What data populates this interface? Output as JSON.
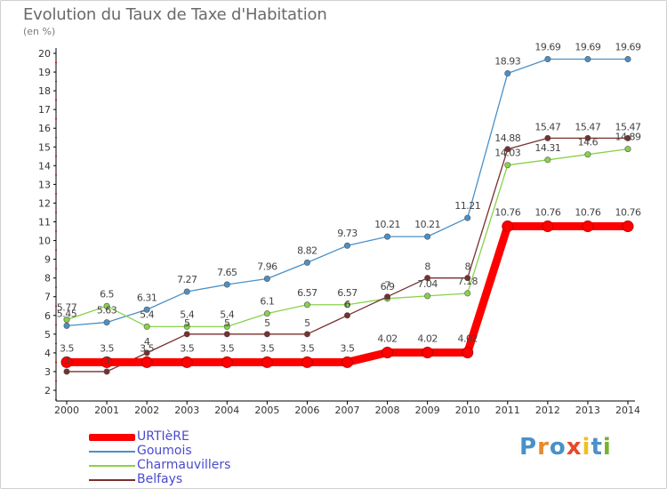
{
  "header": {
    "title": "Evolution du Taux de Taxe d'Habitation",
    "unit": "(en %)"
  },
  "chart_data": {
    "type": "line",
    "title": "Evolution du Taux de Taxe d'Habitation",
    "ylabel": "(en %)",
    "xlabel": "",
    "x": [
      "2000",
      "2001",
      "2002",
      "2003",
      "2004",
      "2005",
      "2006",
      "2007",
      "2008",
      "2009",
      "2010",
      "2011",
      "2012",
      "2013",
      "2014"
    ],
    "ylim": [
      2,
      20
    ],
    "yticks": [
      2,
      3,
      4,
      5,
      6,
      7,
      8,
      9,
      10,
      11,
      12,
      13,
      14,
      15,
      16,
      17,
      18,
      19,
      20
    ],
    "grid": false,
    "legend_position": "bottom-left",
    "series": [
      {
        "name": "URTIèRE",
        "color": "#ff0000",
        "values": [
          3.5,
          3.5,
          3.5,
          3.5,
          3.5,
          3.5,
          3.5,
          3.5,
          4.02,
          4.02,
          4.02,
          10.76,
          10.76,
          10.76,
          10.76
        ],
        "labels": [
          "3.5",
          "3.5",
          "3.5",
          "3.5",
          "3.5",
          "3.5",
          "3.5",
          "3.5",
          "4.02",
          "4.02",
          "4.02",
          "10.76",
          "10.76",
          "10.76",
          "10.76"
        ]
      },
      {
        "name": "Goumois",
        "color": "#4a90c8",
        "values": [
          5.45,
          5.63,
          6.31,
          7.27,
          7.65,
          7.96,
          8.82,
          9.73,
          10.21,
          10.21,
          11.21,
          18.93,
          19.69,
          19.69,
          19.69
        ],
        "labels": [
          "5.45",
          "5.63",
          "6.31",
          "7.27",
          "7.65",
          "7.96",
          "8.82",
          "9.73",
          "10.21",
          "10.21",
          "11.21",
          "18.93",
          "19.69",
          "19.69",
          "19.69"
        ]
      },
      {
        "name": "Charmauvillers",
        "color": "#88d24a",
        "values": [
          5.77,
          6.5,
          5.4,
          5.4,
          5.4,
          6.1,
          6.57,
          6.57,
          6.9,
          7.04,
          7.18,
          14.03,
          14.31,
          14.6,
          14.89
        ],
        "labels": [
          "5.77",
          "6.5",
          "5.4",
          "5.4",
          "5.4",
          "6.1",
          "6.57",
          "6.57",
          "6.9",
          "7.04",
          "7.18",
          "14.03",
          "14.31",
          "14.6",
          "14.89"
        ]
      },
      {
        "name": "Belfays",
        "color": "#7a2e2e",
        "values": [
          3,
          3,
          4,
          5,
          5,
          5,
          5,
          6,
          7,
          8,
          8,
          14.88,
          15.47,
          15.47,
          15.47
        ],
        "labels": [
          "3",
          "3",
          "4",
          "5",
          "5",
          "5",
          "5",
          "6",
          "7",
          "8",
          "8",
          "14.88",
          "15.47",
          "15.47",
          "15.47"
        ]
      }
    ]
  },
  "legend": {
    "items": [
      {
        "label": "URTIèRE"
      },
      {
        "label": "Goumois"
      },
      {
        "label": "Charmauvillers"
      },
      {
        "label": "Belfays"
      }
    ]
  },
  "logo": {
    "text": "Proxiti"
  }
}
